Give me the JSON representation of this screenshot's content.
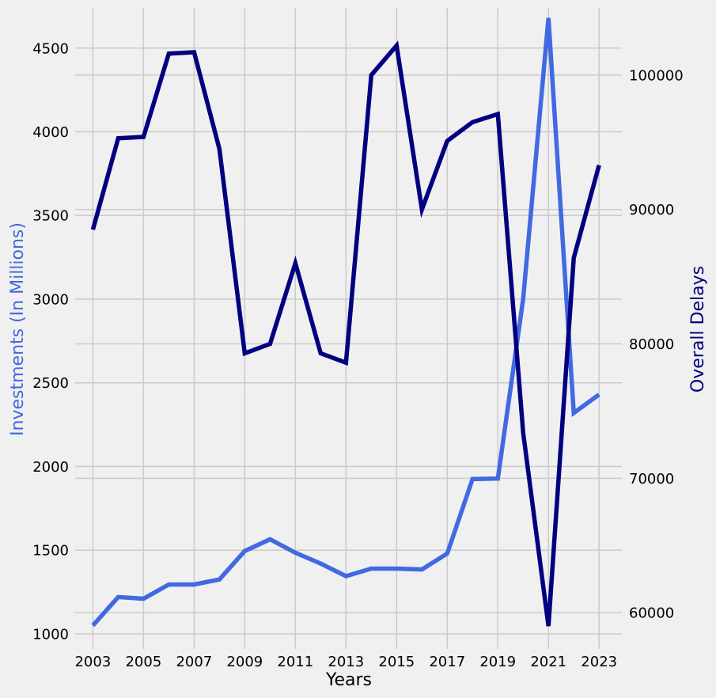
{
  "chart_data": {
    "type": "line",
    "title": "",
    "xlabel": "Years",
    "ylabel_left": "Investments (In Millions)",
    "ylabel_right": "Overall Delays",
    "x": [
      2003,
      2004,
      2005,
      2006,
      2007,
      2008,
      2009,
      2010,
      2011,
      2012,
      2013,
      2014,
      2015,
      2016,
      2017,
      2018,
      2019,
      2020,
      2021,
      2022,
      2023
    ],
    "x_ticks": [
      "2003",
      "2005",
      "2007",
      "2009",
      "2011",
      "2013",
      "2015",
      "2017",
      "2019",
      "2021",
      "2023"
    ],
    "xlim": [
      2002.3,
      2023.9
    ],
    "left_axis": {
      "ylim": [
        910,
        4740
      ],
      "ticks": [
        "1000",
        "1500",
        "2000",
        "2500",
        "3000",
        "3500",
        "4000",
        "4500"
      ],
      "tick_values": [
        1000,
        1500,
        2000,
        2500,
        3000,
        3500,
        4000,
        4500
      ]
    },
    "right_axis": {
      "ylim": [
        57300,
        105000
      ],
      "ticks": [
        "60000",
        "70000",
        "80000",
        "90000",
        "100000"
      ],
      "tick_values": [
        60000,
        70000,
        80000,
        90000,
        100000
      ]
    },
    "grid": true,
    "series": [
      {
        "axis": "left",
        "color": "#4169e1",
        "values": [
          1050,
          1220,
          1210,
          1295,
          1295,
          1325,
          1495,
          1565,
          1485,
          1420,
          1345,
          1390,
          1390,
          1385,
          1480,
          1925,
          1928,
          3000,
          4680,
          2320,
          2430
        ]
      },
      {
        "axis": "right",
        "color": "#000080",
        "values": [
          88500,
          95300,
          95400,
          101600,
          101700,
          94500,
          79300,
          80000,
          86000,
          79300,
          78600,
          100000,
          102200,
          90000,
          95100,
          96500,
          97100,
          73400,
          59000,
          86400,
          93300
        ]
      }
    ]
  }
}
